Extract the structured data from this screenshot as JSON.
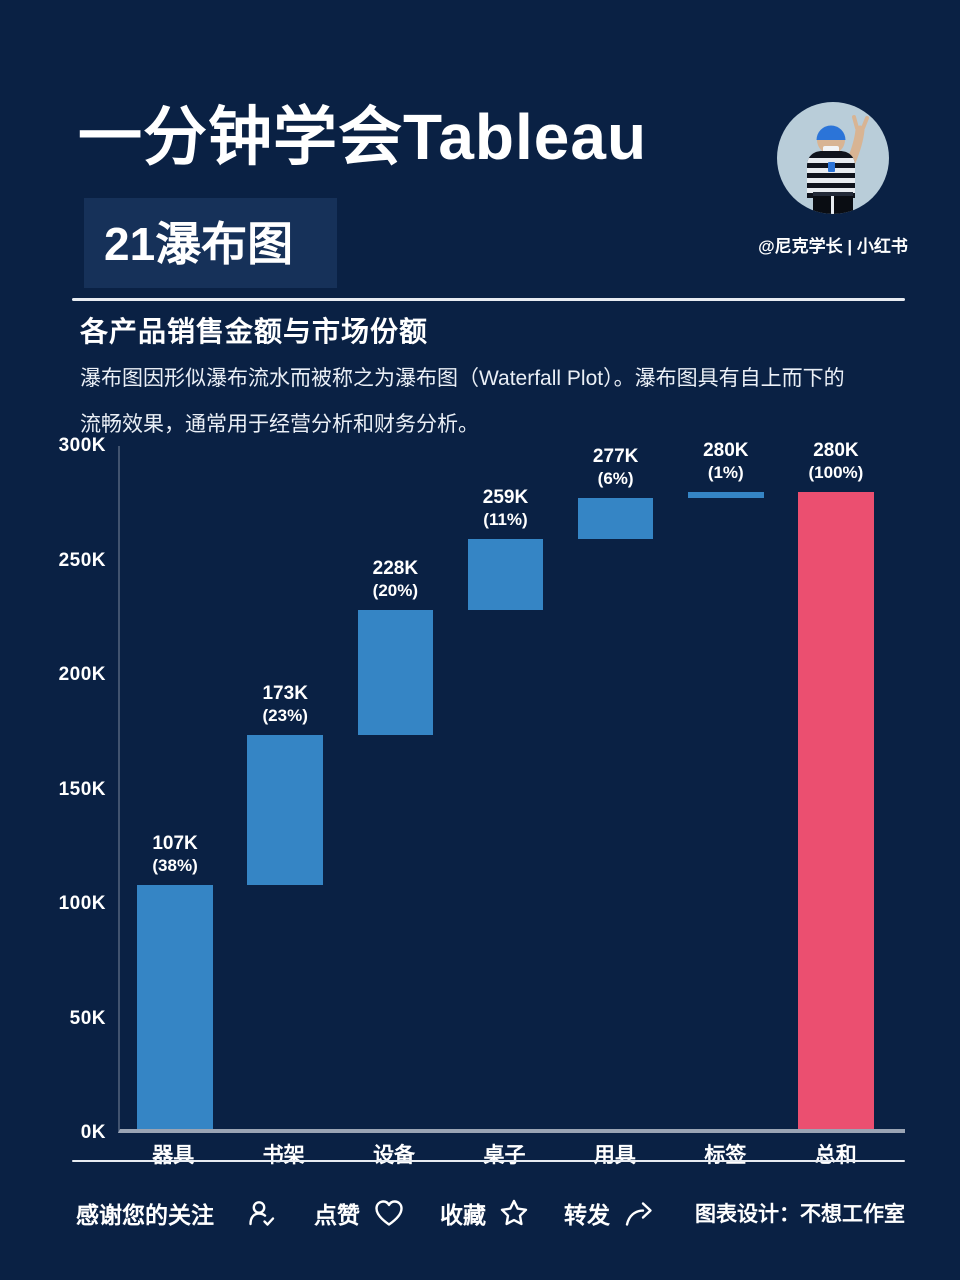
{
  "header": {
    "title": "一分钟学会Tableau",
    "episode": "21瀑布图",
    "handle": "@尼克学长 | 小红书"
  },
  "intro": {
    "heading": "各产品销售金额与市场份额",
    "body_line1": "瀑布图因形似瀑布流水而被称之为瀑布图（Waterfall Plot）。瀑布图具有自上而下的",
    "body_line2": "流畅效果，通常用于经营分析和财务分析。"
  },
  "chart_data": {
    "type": "bar",
    "subtype": "waterfall",
    "title": "各产品销售金额与市场份额",
    "categories": [
      "器具",
      "书架",
      "设备",
      "桌子",
      "用具",
      "标签",
      "总和"
    ],
    "steps": [
      {
        "category": "器具",
        "start": 0,
        "end": 107,
        "label": "107K",
        "pct": "(38%)",
        "kind": "increment"
      },
      {
        "category": "书架",
        "start": 107,
        "end": 173,
        "label": "173K",
        "pct": "(23%)",
        "kind": "increment"
      },
      {
        "category": "设备",
        "start": 173,
        "end": 228,
        "label": "228K",
        "pct": "(20%)",
        "kind": "increment"
      },
      {
        "category": "桌子",
        "start": 228,
        "end": 259,
        "label": "259K",
        "pct": "(11%)",
        "kind": "increment"
      },
      {
        "category": "用具",
        "start": 259,
        "end": 277,
        "label": "277K",
        "pct": "(6%)",
        "kind": "increment"
      },
      {
        "category": "标签",
        "start": 277,
        "end": 280,
        "label": "280K",
        "pct": "(1%)",
        "kind": "increment"
      },
      {
        "category": "总和",
        "start": 0,
        "end": 280,
        "label": "280K",
        "pct": "(100%)",
        "kind": "total"
      }
    ],
    "y_ticks": [
      "0K",
      "50K",
      "100K",
      "150K",
      "200K",
      "250K",
      "300K"
    ],
    "y_tick_step": 50,
    "ylim": [
      0,
      300
    ],
    "unit": "K",
    "grid": false,
    "legend": false,
    "colors": {
      "increment": "#3585C5",
      "total": "#EB4F70"
    }
  },
  "footer": {
    "thanks": "感谢您的关注",
    "actions": [
      {
        "label": "点赞",
        "icon": "heart-icon"
      },
      {
        "label": "收藏",
        "icon": "star-icon"
      },
      {
        "label": "转发",
        "icon": "share-icon"
      }
    ],
    "credit": "图表设计：不想工作室"
  },
  "colors": {
    "background": "#0A2144",
    "badge_background": "#163159",
    "bar_blue": "#3585C5",
    "bar_pink": "#EB4F70",
    "divider": "#E8ECF2"
  }
}
